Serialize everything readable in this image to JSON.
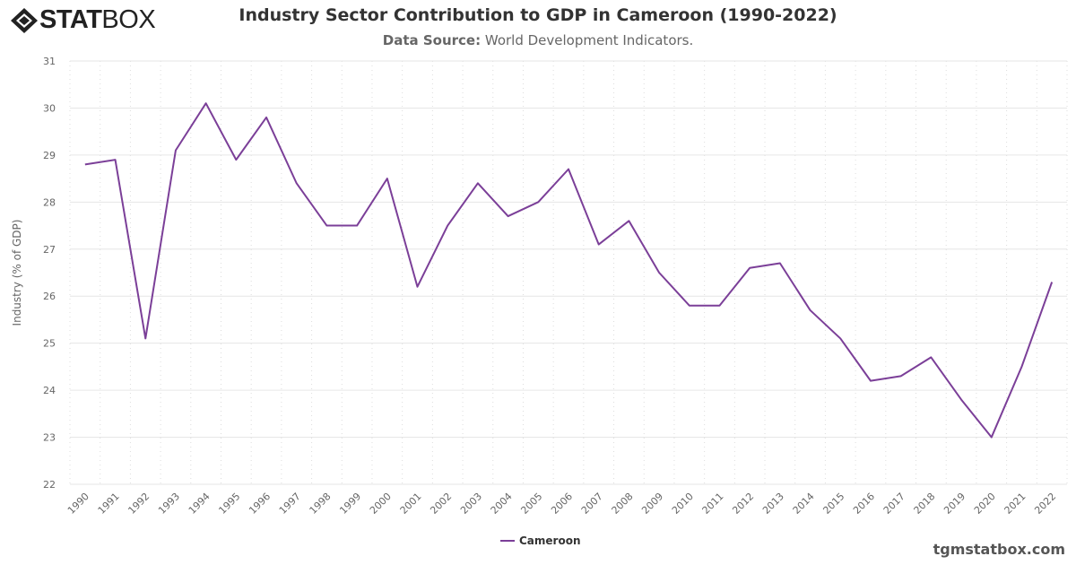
{
  "logo": {
    "text_bold": "STAT",
    "text_light": "BOX"
  },
  "header": {
    "title": "Industry Sector Contribution to GDP in Cameroon (1990-2022)",
    "subtitle_label": "Data Source:",
    "subtitle_value": "World Development Indicators."
  },
  "footer": {
    "site": "tgmstatbox.com"
  },
  "chart_data": {
    "type": "line",
    "title": "Industry Sector Contribution to GDP in Cameroon (1990-2022)",
    "xlabel": "",
    "ylabel": "Industry (% of GDP)",
    "ylim": [
      22,
      31
    ],
    "yticks": [
      22,
      23,
      24,
      25,
      26,
      27,
      28,
      29,
      30,
      31
    ],
    "grid": true,
    "legend": "bottom-center",
    "categories": [
      "1990",
      "1991",
      "1992",
      "1993",
      "1994",
      "1995",
      "1996",
      "1997",
      "1998",
      "1999",
      "2000",
      "2001",
      "2002",
      "2003",
      "2004",
      "2005",
      "2006",
      "2007",
      "2008",
      "2009",
      "2010",
      "2011",
      "2012",
      "2013",
      "2014",
      "2015",
      "2016",
      "2017",
      "2018",
      "2019",
      "2020",
      "2021",
      "2022"
    ],
    "series": [
      {
        "name": "Cameroon",
        "color": "#7b3f98",
        "values": [
          28.8,
          28.9,
          25.1,
          29.1,
          30.1,
          28.9,
          29.8,
          28.4,
          27.5,
          27.5,
          28.5,
          26.2,
          27.5,
          28.4,
          27.7,
          28.0,
          28.7,
          27.1,
          27.6,
          26.5,
          25.8,
          25.8,
          26.6,
          26.7,
          25.7,
          25.1,
          24.2,
          24.3,
          24.7,
          23.8,
          23.0,
          24.5,
          26.3
        ]
      }
    ]
  }
}
